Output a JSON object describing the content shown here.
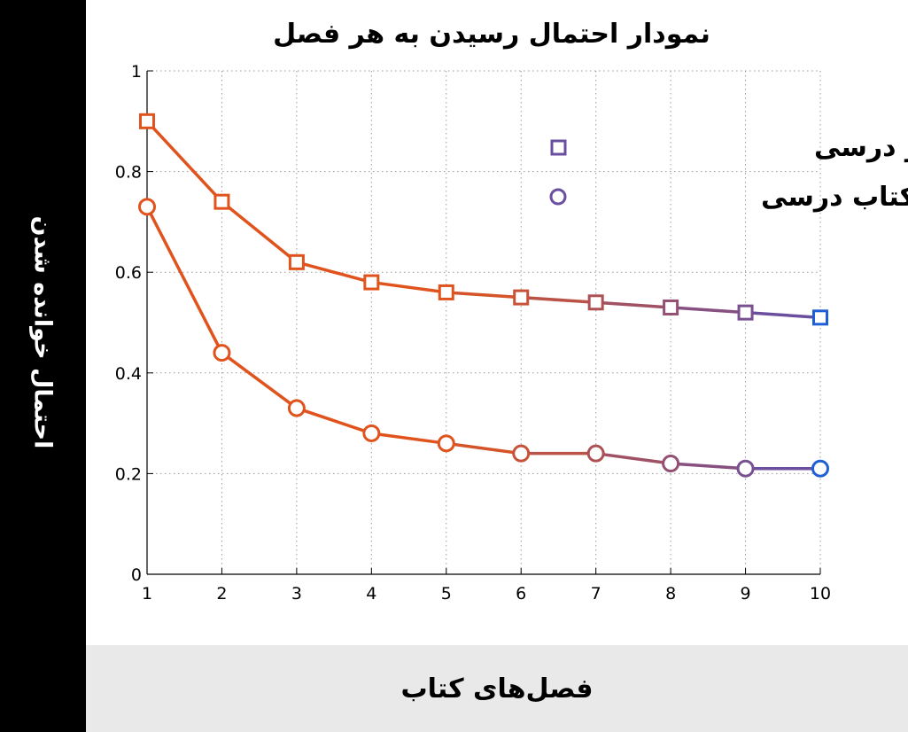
{
  "colors": {
    "start": "#e0531c",
    "end": "#6a4fa0",
    "last_marker": "#1f5fd6",
    "band_left": "#000000",
    "band_bottom": "#e9e9e9"
  },
  "chart_data": {
    "type": "line",
    "title": "نمودار احتمال رسیدن به هر فصل",
    "xlabel": "فصل‌های کتاب",
    "ylabel": "احتمال خوانده شدن",
    "x": [
      1,
      2,
      3,
      4,
      5,
      6,
      7,
      8,
      9,
      10
    ],
    "xlim": [
      1,
      10
    ],
    "ylim": [
      0,
      1
    ],
    "x_ticks": [
      "1",
      "2",
      "3",
      "4",
      "5",
      "6",
      "7",
      "8",
      "9",
      "10"
    ],
    "y_ticks": [
      "0",
      "0.2",
      "0.4",
      "0.6",
      "0.8",
      "1"
    ],
    "grid": true,
    "legend_position": "top-right",
    "series": [
      {
        "name": "کتاب غیر درسی",
        "marker": "square",
        "values": [
          0.9,
          0.74,
          0.62,
          0.58,
          0.56,
          0.55,
          0.54,
          0.53,
          0.52,
          0.51
        ]
      },
      {
        "name": "کتاب درسی",
        "marker": "circle",
        "values": [
          0.73,
          0.44,
          0.33,
          0.28,
          0.26,
          0.24,
          0.24,
          0.22,
          0.21,
          0.21
        ]
      }
    ]
  }
}
